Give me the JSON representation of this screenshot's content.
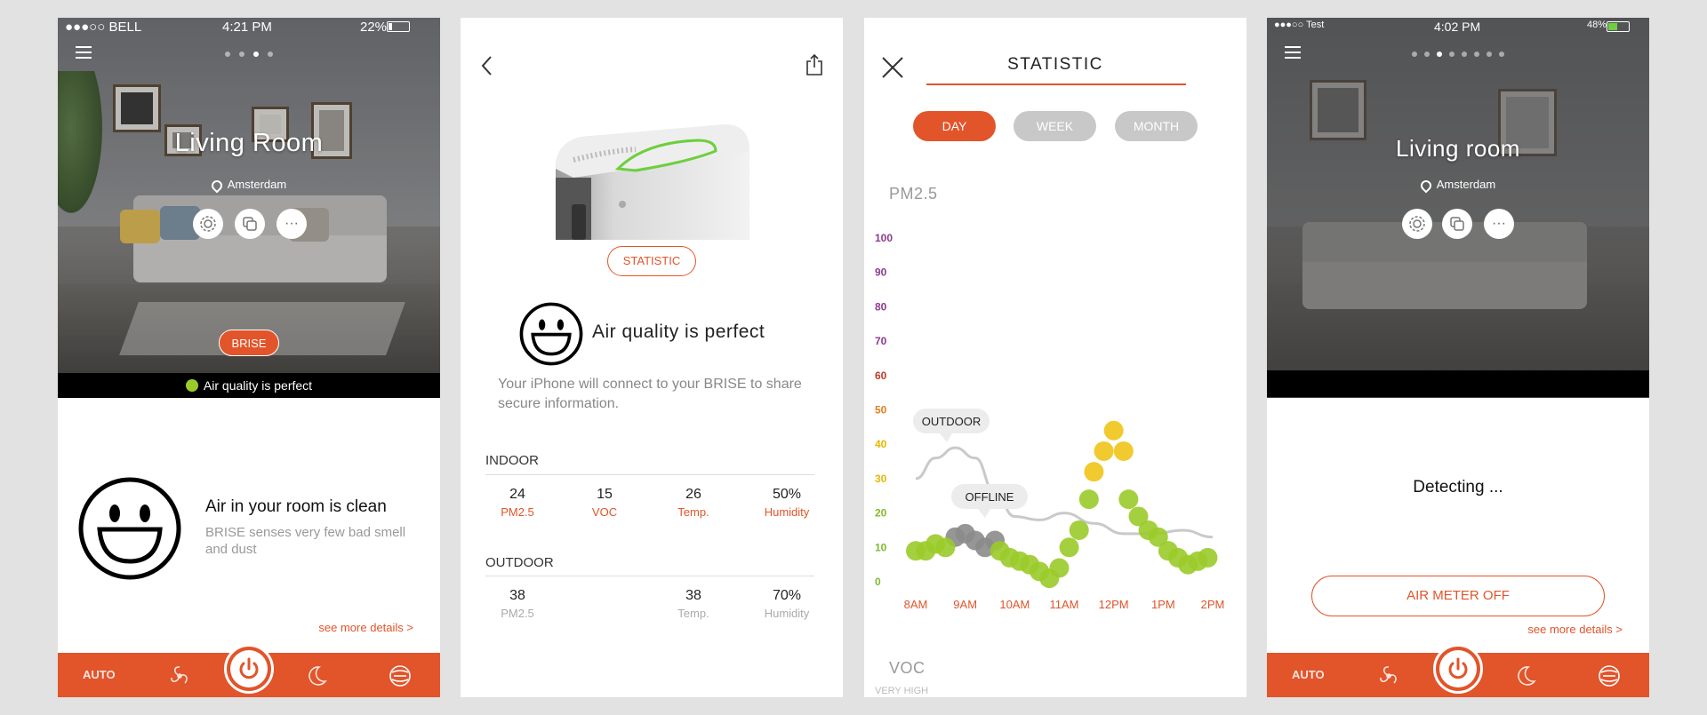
{
  "screen1": {
    "status": {
      "carrier": "●●●○○ BELL",
      "time": "4:21 PM",
      "battery": "22%"
    },
    "room_title": "Living Room",
    "location": "Amsterdam",
    "more_label": "···",
    "brand_pill": "BRISE",
    "aq_bar": "Air quality is perfect",
    "clean_title": "Air in your room is clean",
    "clean_sub": "BRISE senses very few bad smell and dust",
    "details_link": "see more details >",
    "nav_auto": "AUTO",
    "accent": "#e2542a",
    "good_color": "#9acb2a"
  },
  "screen2": {
    "stat_button": "STATISTIC",
    "aq_text": "Air quality is perfect",
    "connect_text": "Your iPhone will connect to your BRISE to share secure information.",
    "indoor": {
      "title": "INDOOR",
      "metrics": [
        {
          "value": "24",
          "label": "PM2.5"
        },
        {
          "value": "15",
          "label": "VOC"
        },
        {
          "value": "26",
          "label": "Temp."
        },
        {
          "value": "50%",
          "label": "Humidity"
        }
      ]
    },
    "outdoor": {
      "title": "OUTDOOR",
      "metrics": [
        {
          "value": "38",
          "label": "PM2.5"
        },
        {
          "value": "38",
          "label": "Temp."
        },
        {
          "value": "70%",
          "label": "Humidity"
        }
      ]
    }
  },
  "screen3": {
    "title": "STATISTIC",
    "tabs": [
      "DAY",
      "WEEK",
      "MONTH"
    ],
    "pm_label": "PM2.5",
    "voc_label": "VOC",
    "very_high": "VERY HIGH"
  },
  "chart_data": {
    "type": "scatter",
    "title": "PM2.5",
    "x_labels": [
      "8AM",
      "9AM",
      "10AM",
      "11AM",
      "12PM",
      "1PM",
      "2PM"
    ],
    "y_ticks": [
      0,
      10,
      20,
      30,
      40,
      50,
      60,
      70,
      80,
      90,
      100
    ],
    "ylim": [
      0,
      100
    ],
    "xlim": [
      8,
      14
    ],
    "annotations": [
      "OUTDOOR",
      "OFFLINE"
    ],
    "series": [
      {
        "name": "indoor",
        "points": [
          [
            8.0,
            9
          ],
          [
            8.2,
            9
          ],
          [
            8.4,
            11
          ],
          [
            8.6,
            10
          ],
          [
            9.7,
            9
          ],
          [
            9.9,
            7
          ],
          [
            10.1,
            6
          ],
          [
            10.3,
            5
          ],
          [
            10.5,
            3
          ],
          [
            10.7,
            1
          ],
          [
            10.9,
            4
          ],
          [
            11.1,
            10
          ],
          [
            11.3,
            15
          ],
          [
            11.5,
            24
          ],
          [
            12.3,
            24
          ],
          [
            12.5,
            19
          ],
          [
            12.7,
            15
          ],
          [
            12.9,
            13
          ],
          [
            13.1,
            9
          ],
          [
            13.3,
            7
          ],
          [
            13.5,
            5
          ],
          [
            13.7,
            6
          ],
          [
            13.9,
            7
          ]
        ]
      },
      {
        "name": "offline",
        "points": [
          [
            8.8,
            13
          ],
          [
            9.0,
            14
          ],
          [
            9.2,
            12
          ],
          [
            9.4,
            10
          ],
          [
            9.6,
            12
          ]
        ]
      },
      {
        "name": "high",
        "points": [
          [
            11.6,
            32
          ],
          [
            11.8,
            38
          ],
          [
            12.0,
            44
          ],
          [
            12.2,
            38
          ]
        ]
      },
      {
        "name": "outdoor",
        "points": [
          [
            8.0,
            30
          ],
          [
            8.4,
            36
          ],
          [
            8.8,
            39
          ],
          [
            9.2,
            36
          ],
          [
            9.6,
            26
          ],
          [
            10.0,
            19
          ],
          [
            10.5,
            18
          ],
          [
            11.0,
            20
          ],
          [
            11.6,
            17
          ],
          [
            12.2,
            14
          ],
          [
            12.8,
            14
          ],
          [
            13.4,
            15
          ],
          [
            14.0,
            13
          ]
        ]
      }
    ],
    "colors": {
      "indoor": "#9acb2a",
      "offline": "#8b8b8b",
      "high": "#f0c419",
      "outdoor": "#c9c9c9"
    }
  },
  "screen4": {
    "status": {
      "carrier": "●●●○○ Test",
      "time": "4:02 PM",
      "battery": "48%"
    },
    "room_title": "Living room",
    "location": "Amsterdam",
    "more_label": "···",
    "detecting": "Detecting ...",
    "meter_off": "AIR METER OFF",
    "details_link": "see more details >",
    "nav_auto": "AUTO"
  }
}
